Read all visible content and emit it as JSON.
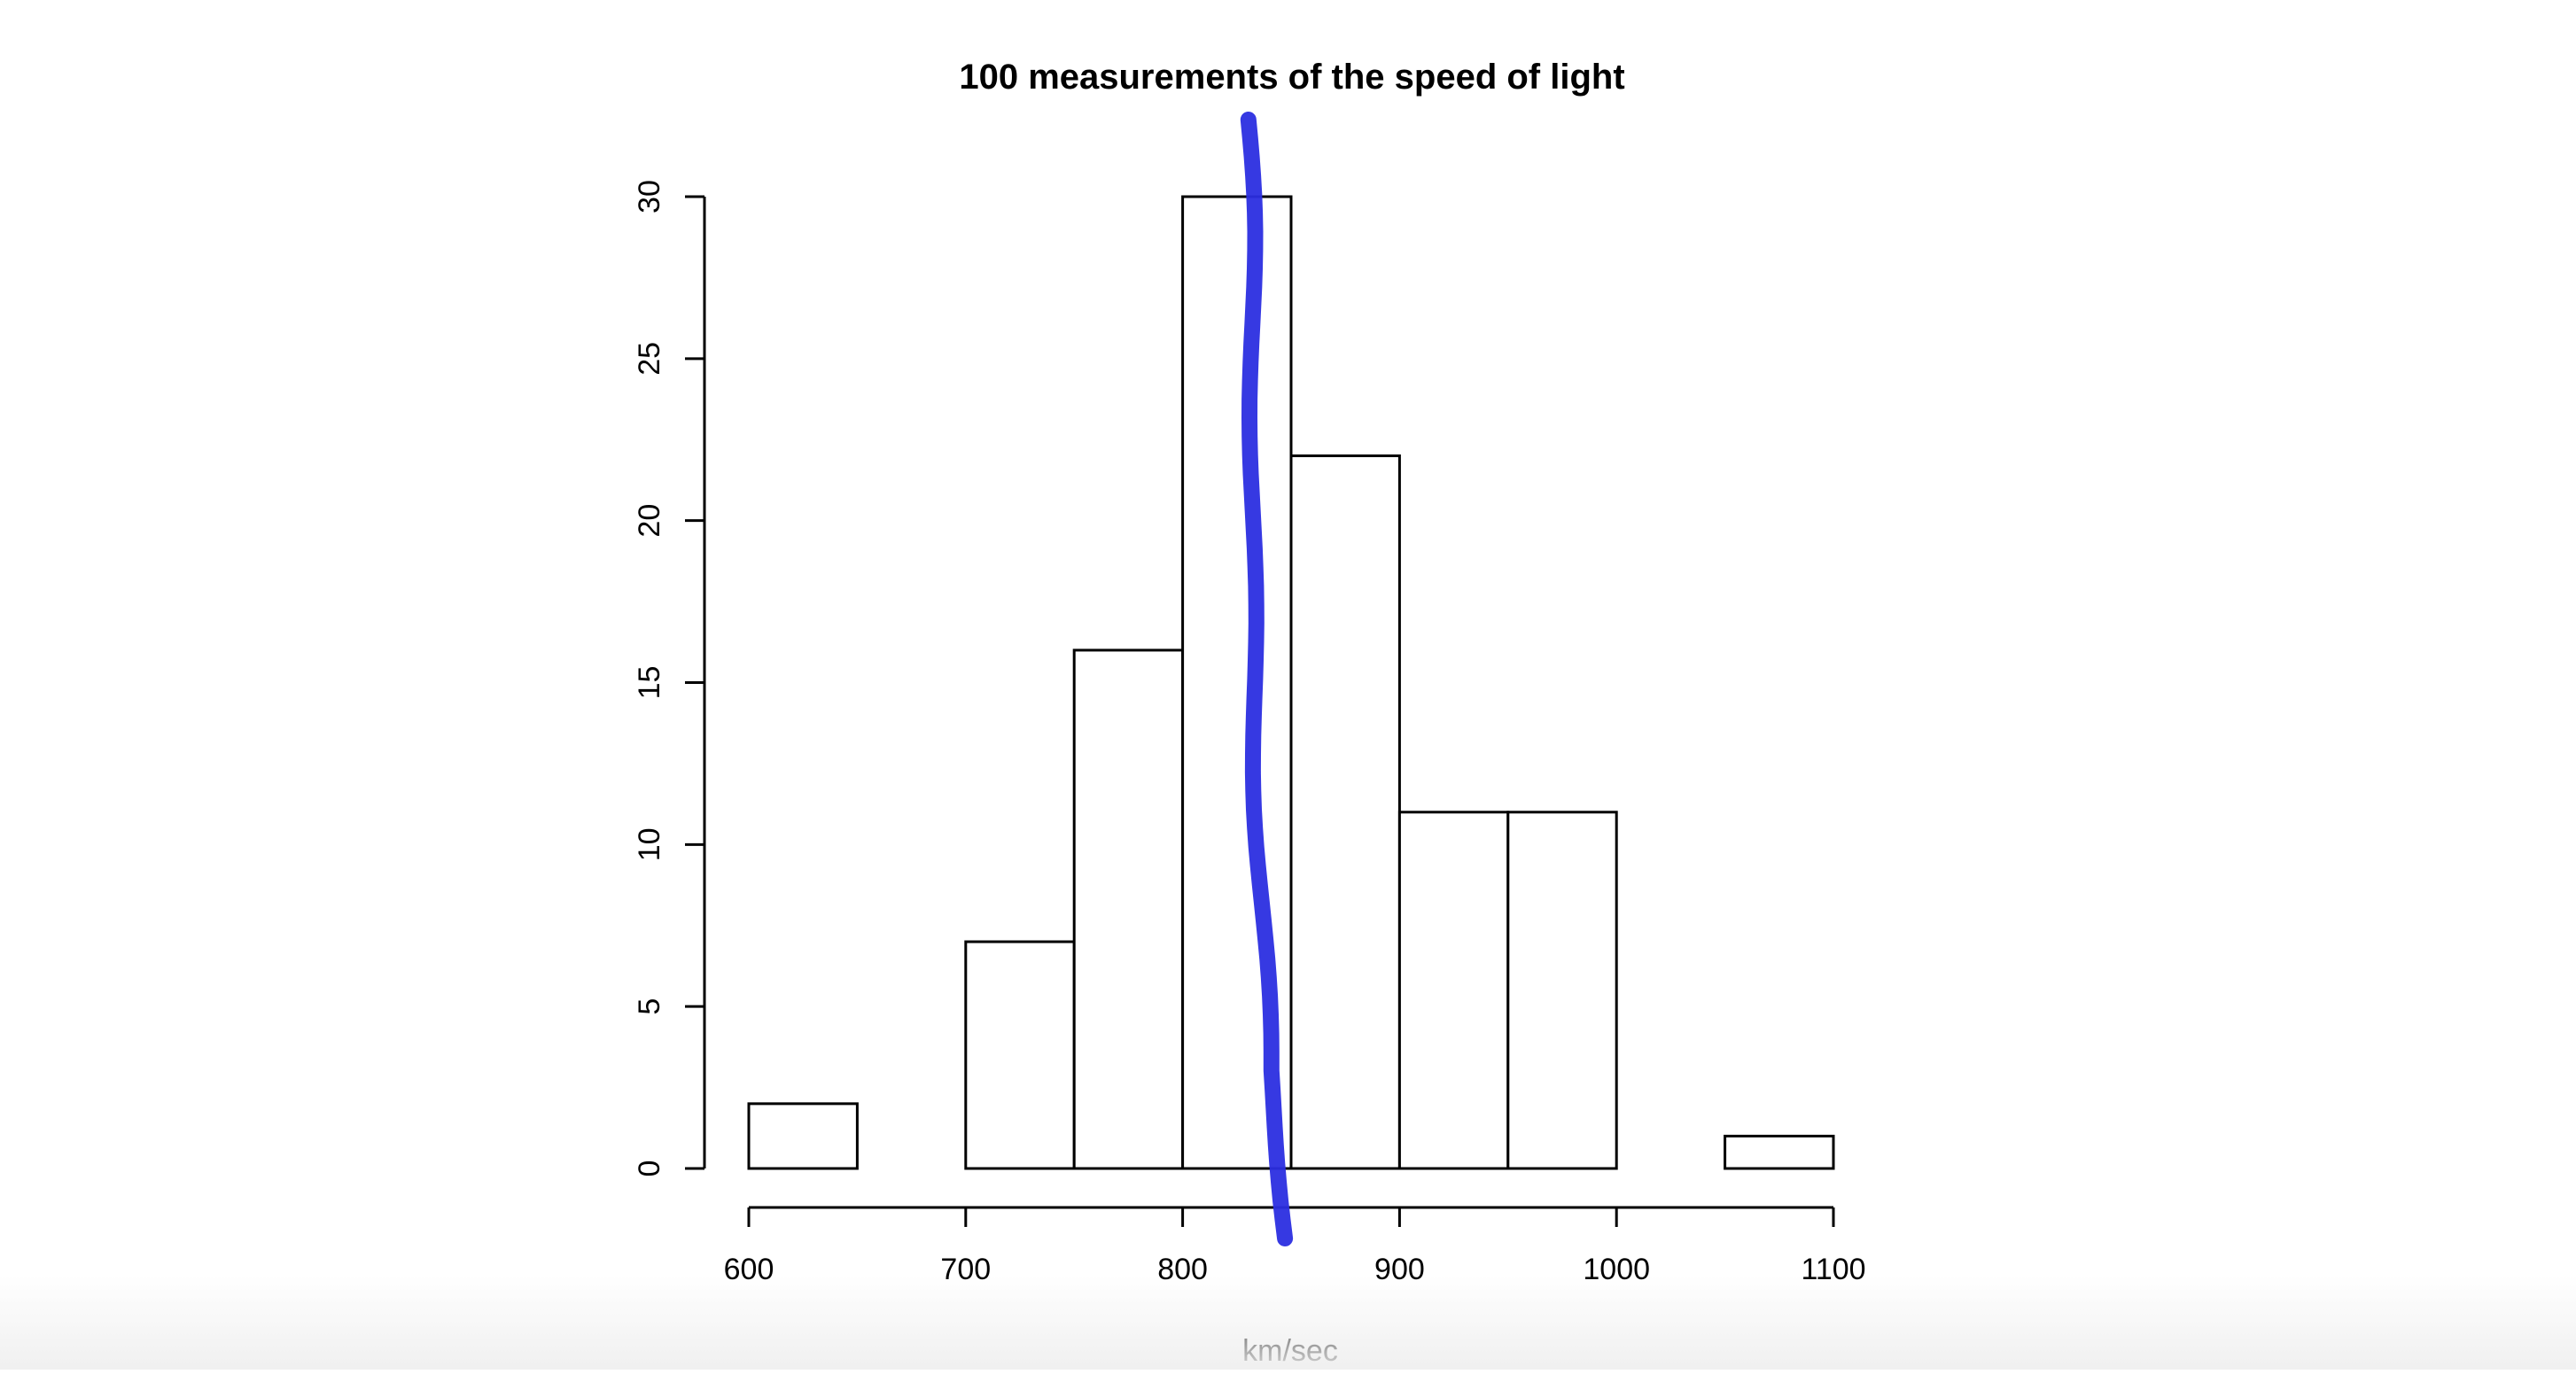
{
  "chart_data": {
    "type": "bar",
    "title": "100 measurements of the speed of light",
    "xlabel": "km/sec",
    "ylabel": "",
    "bin_edges": [
      600,
      650,
      700,
      750,
      800,
      850,
      900,
      950,
      1000,
      1050,
      1100
    ],
    "values": [
      2,
      0,
      7,
      16,
      30,
      22,
      11,
      11,
      0,
      1
    ],
    "x_ticks": [
      "600",
      "700",
      "800",
      "900",
      "1000",
      "1100"
    ],
    "x_tick_values": [
      600,
      700,
      800,
      900,
      1000,
      1100
    ],
    "y_ticks": [
      "0",
      "5",
      "10",
      "15",
      "20",
      "25",
      "30"
    ],
    "y_tick_values": [
      0,
      5,
      10,
      15,
      20,
      25,
      30
    ],
    "xlim": [
      600,
      1100
    ],
    "ylim": [
      0,
      30
    ],
    "grid": false,
    "bar_fill": "#ffffff",
    "bar_stroke": "#000000",
    "annotation": {
      "type": "hand-drawn vertical line",
      "x": 838,
      "color": "#2b2ee0"
    }
  }
}
